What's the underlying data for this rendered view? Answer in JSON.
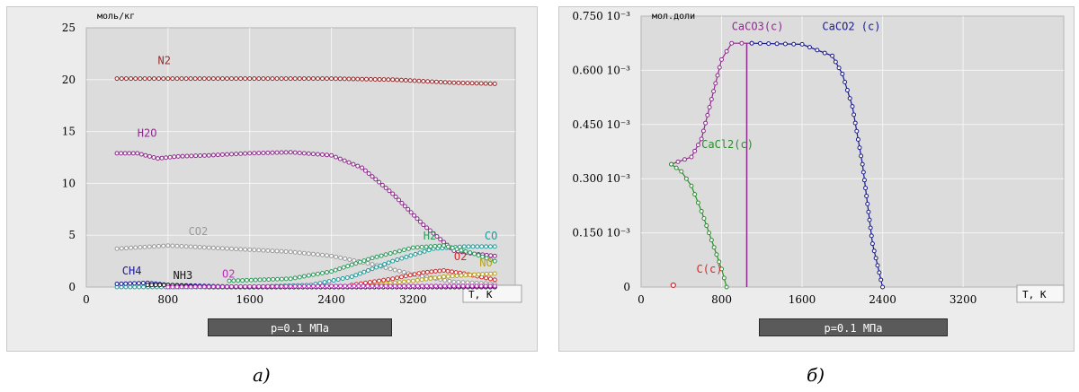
{
  "colors": {
    "N2": "#9b2a2a",
    "H2O": "#8e2a8e",
    "CO2": "#9a9a9a",
    "CO": "#1f9b9b",
    "H2": "#2a9b5a",
    "O2": "#d22a2a",
    "NO": "#b8a21c",
    "CH4": "#1a1a9e",
    "NH3": "#1a1a1a",
    "O2b": "#c02ac0",
    "CaCO3": "#8e2a8e",
    "CaCO2": "#1a1a8e",
    "CaCl2": "#2a8e2a",
    "C": "#d22a2a"
  },
  "captions": {
    "left": "а)",
    "right": "б)"
  },
  "pressure": {
    "left": "p=0.1 МПа",
    "right": "p=0.1 МПа"
  },
  "chart_data": [
    {
      "type": "line",
      "ylabel": "моль/кг",
      "xlabel": "T, K",
      "xlim": [
        0,
        4200
      ],
      "ylim": [
        0,
        25
      ],
      "x_ticks": [
        "0",
        "800",
        "1600",
        "2400",
        "3200"
      ],
      "y_ticks": [
        "0",
        "5",
        "10",
        "15",
        "20",
        "25"
      ],
      "grid": true,
      "series": [
        {
          "name": "N2",
          "color_key": "N2",
          "x": [
            300,
            800,
            1600,
            2400,
            3000,
            3600,
            4000
          ],
          "y": [
            20.1,
            20.1,
            20.1,
            20.1,
            20.0,
            19.7,
            19.6
          ]
        },
        {
          "name": "H2O",
          "color_key": "H2O",
          "x": [
            300,
            500,
            700,
            900,
            1200,
            1600,
            2000,
            2400,
            2700,
            3000,
            3300,
            3600,
            3800,
            4000
          ],
          "y": [
            12.9,
            12.9,
            12.4,
            12.6,
            12.7,
            12.9,
            13.0,
            12.7,
            11.5,
            9.0,
            6.0,
            3.5,
            3.2,
            3.0
          ]
        },
        {
          "name": "CO2",
          "color_key": "CO2",
          "x": [
            300,
            800,
            1600,
            2000,
            2400,
            2800,
            3200,
            3600,
            4000
          ],
          "y": [
            3.7,
            4.0,
            3.6,
            3.4,
            3.0,
            2.2,
            1.2,
            0.5,
            0.3
          ]
        },
        {
          "name": "CO",
          "color_key": "CO",
          "x": [
            300,
            1600,
            2200,
            2600,
            3000,
            3400,
            3700,
            4000
          ],
          "y": [
            0.0,
            0.0,
            0.2,
            1.0,
            2.5,
            3.7,
            3.9,
            3.9
          ]
        },
        {
          "name": "H2",
          "color_key": "H2",
          "x": [
            1400,
            2000,
            2400,
            2800,
            3200,
            3500,
            3800,
            4000
          ],
          "y": [
            0.6,
            0.8,
            1.5,
            2.8,
            3.8,
            4.0,
            3.2,
            2.5
          ]
        },
        {
          "name": "O2",
          "color_key": "O2",
          "x": [
            2600,
            3000,
            3300,
            3500,
            3700,
            4000
          ],
          "y": [
            0.2,
            0.8,
            1.4,
            1.6,
            1.3,
            0.7
          ]
        },
        {
          "name": "NO",
          "color_key": "NO",
          "x": [
            2800,
            3200,
            3500,
            3800,
            4000
          ],
          "y": [
            0.2,
            0.6,
            1.0,
            1.2,
            1.3
          ]
        },
        {
          "name": "CH4",
          "color_key": "CH4",
          "x": [
            300,
            600,
            800,
            1600,
            4000
          ],
          "y": [
            0.3,
            0.4,
            0.2,
            0.0,
            0.0
          ]
        },
        {
          "name": "NH3",
          "color_key": "NH3",
          "x": [
            600,
            800,
            1200,
            4000
          ],
          "y": [
            0.2,
            0.2,
            0.0,
            0.0
          ]
        },
        {
          "name": "O2",
          "color_key": "O2b",
          "x": [
            800,
            1600,
            2400,
            3200,
            4000
          ],
          "y": [
            0.0,
            0.05,
            0.1,
            0.1,
            0.1
          ]
        }
      ],
      "labels": [
        {
          "text": "N2",
          "color_key": "N2",
          "x": 700,
          "y": 21.5
        },
        {
          "text": "H2O",
          "color_key": "H2O",
          "x": 500,
          "y": 14.5
        },
        {
          "text": "CO2",
          "color_key": "CO2",
          "x": 1000,
          "y": 5.0
        },
        {
          "text": "H2",
          "color_key": "H2",
          "x": 3300,
          "y": 4.6
        },
        {
          "text": "CO",
          "color_key": "CO",
          "x": 3900,
          "y": 4.6
        },
        {
          "text": "O2",
          "color_key": "O2",
          "x": 3600,
          "y": 2.6
        },
        {
          "text": "NO",
          "color_key": "NO",
          "x": 3850,
          "y": 2.0
        },
        {
          "text": "CH4",
          "color_key": "CH4",
          "x": 350,
          "y": 1.2
        },
        {
          "text": "NH3",
          "color_key": "NH3",
          "x": 850,
          "y": 0.8
        },
        {
          "text": "O2",
          "color_key": "O2b",
          "x": 1330,
          "y": 0.9
        }
      ]
    },
    {
      "type": "line",
      "ylabel": "мол.доли",
      "xlabel": "T, K",
      "xlim": [
        0,
        4200
      ],
      "ylim": [
        0,
        0.00075
      ],
      "x_ticks": [
        "0",
        "800",
        "1600",
        "2400",
        "3200"
      ],
      "y_ticks": [
        "0",
        "0.150 10⁻³",
        "0.300 10⁻³",
        "0.450 10⁻³",
        "0.600 10⁻³",
        "0.750 10⁻³"
      ],
      "grid": true,
      "series": [
        {
          "name": "CaCO3(c)",
          "color_key": "CaCO3",
          "x": [
            300,
            500,
            600,
            700,
            800,
            900,
            1000,
            1100
          ],
          "y": [
            0.00034,
            0.00036,
            0.00041,
            0.00052,
            0.00063,
            0.000675,
            0.000675,
            0.000675
          ]
        },
        {
          "name": "CaCO2 (c)",
          "color_key": "CaCO2",
          "x": [
            1100,
            1600,
            1900,
            2000,
            2100,
            2200,
            2300,
            2400
          ],
          "y": [
            0.000675,
            0.000672,
            0.00064,
            0.00059,
            0.0005,
            0.00034,
            0.00012,
            0.0
          ]
        },
        {
          "name": "CaCl2(c)",
          "color_key": "CaCl2",
          "x": [
            300,
            400,
            500,
            600,
            700,
            800,
            850
          ],
          "y": [
            0.00034,
            0.00032,
            0.00028,
            0.00021,
            0.00013,
            5e-05,
            0.0
          ]
        },
        {
          "name": "C(c)",
          "color_key": "C",
          "x": [
            320
          ],
          "y": [
            5e-06
          ]
        }
      ],
      "vline": {
        "x": 1050,
        "color_key": "CaCO3"
      },
      "labels": [
        {
          "text": "CaCO3(c)",
          "color_key": "CaCO3",
          "x": 900,
          "y": 0.000712
        },
        {
          "text": "CaCO2 (c)",
          "color_key": "CaCO2",
          "x": 1800,
          "y": 0.000712
        },
        {
          "text": "CaCl2(c)",
          "color_key": "CaCl2",
          "x": 600,
          "y": 0.000385
        },
        {
          "text": "C(c)",
          "color_key": "C",
          "x": 550,
          "y": 4e-05
        }
      ]
    }
  ]
}
